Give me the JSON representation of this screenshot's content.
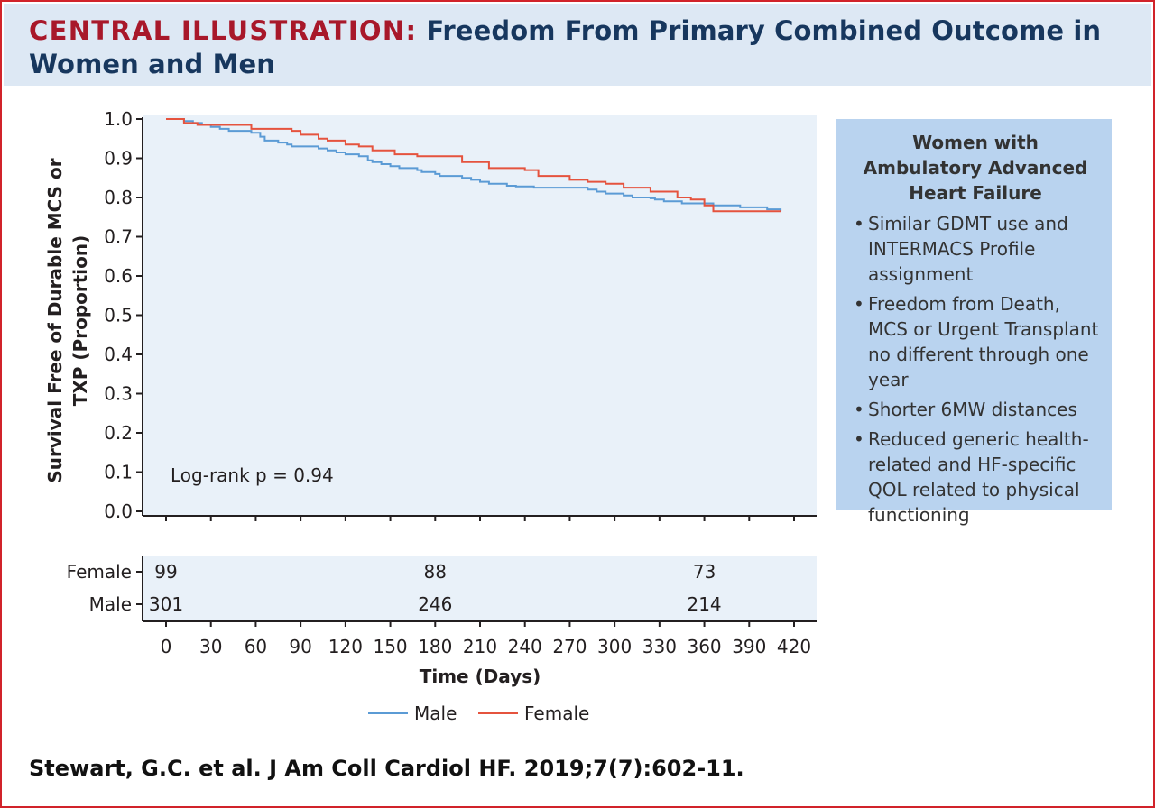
{
  "header": {
    "title_lead": "CENTRAL ILLUSTRATION:",
    "title_rest": "Freedom From Primary Combined Outcome in Women and Men"
  },
  "colors": {
    "male_line": "#5b9bd5",
    "female_line": "#e5533e",
    "plot_background": "#e9f1f9",
    "title_lead": "#a8182a",
    "title_rest": "#17375e",
    "side_box": "#b9d3ef",
    "frame": "#d1232a"
  },
  "chart_data": {
    "type": "line",
    "title": "",
    "xlabel": "Time (Days)",
    "ylabel": "Survival Free of Durable MCS or TXP (Proportion)",
    "xlim": [
      0,
      420
    ],
    "ylim": [
      0,
      1
    ],
    "x_ticks": [
      0,
      30,
      60,
      90,
      120,
      150,
      180,
      210,
      240,
      270,
      300,
      330,
      360,
      390,
      420
    ],
    "y_ticks": [
      "0.0",
      "0.1",
      "0.2",
      "0.3",
      "0.4",
      "0.5",
      "0.6",
      "0.7",
      "0.8",
      "0.9",
      "1.0"
    ],
    "grid": false,
    "legend_position": "bottom-center",
    "annotation": "Log-rank p = 0.94",
    "series": [
      {
        "name": "Male",
        "x": [
          0,
          12,
          18,
          24,
          30,
          36,
          42,
          57,
          63,
          66,
          75,
          81,
          84,
          102,
          108,
          114,
          120,
          129,
          135,
          138,
          144,
          150,
          156,
          168,
          171,
          180,
          183,
          198,
          204,
          210,
          216,
          228,
          234,
          246,
          282,
          288,
          294,
          306,
          312,
          324,
          327,
          333,
          345,
          360,
          366,
          384,
          402,
          411
        ],
        "y": [
          1.0,
          0.995,
          0.99,
          0.985,
          0.98,
          0.975,
          0.97,
          0.965,
          0.955,
          0.945,
          0.94,
          0.935,
          0.93,
          0.925,
          0.92,
          0.915,
          0.91,
          0.905,
          0.895,
          0.89,
          0.885,
          0.88,
          0.875,
          0.87,
          0.865,
          0.86,
          0.855,
          0.85,
          0.845,
          0.84,
          0.835,
          0.83,
          0.828,
          0.825,
          0.82,
          0.815,
          0.81,
          0.805,
          0.8,
          0.798,
          0.795,
          0.79,
          0.785,
          0.785,
          0.78,
          0.775,
          0.77,
          0.765
        ]
      },
      {
        "name": "Female",
        "x": [
          0,
          12,
          21,
          57,
          84,
          90,
          102,
          108,
          120,
          129,
          138,
          153,
          168,
          198,
          216,
          240,
          249,
          270,
          282,
          294,
          306,
          324,
          342,
          351,
          360,
          366,
          411
        ],
        "y": [
          1.0,
          0.99,
          0.985,
          0.975,
          0.97,
          0.96,
          0.95,
          0.945,
          0.935,
          0.93,
          0.92,
          0.91,
          0.905,
          0.89,
          0.875,
          0.87,
          0.855,
          0.845,
          0.84,
          0.835,
          0.825,
          0.815,
          0.8,
          0.795,
          0.78,
          0.765,
          0.765
        ]
      }
    ],
    "at_risk": {
      "times": [
        0,
        180,
        360
      ],
      "rows": [
        {
          "label": "Female",
          "values": [
            "99",
            "88",
            "73"
          ]
        },
        {
          "label": "Male",
          "values": [
            "301",
            "246",
            "214"
          ]
        }
      ]
    }
  },
  "side_panel": {
    "title": "Women with Ambulatory Advanced Heart Failure",
    "bullets": [
      "Similar GDMT use and INTERMACS Profile assignment",
      "Freedom from Death, MCS or Urgent Transplant no different through one year",
      "Shorter 6MW distances",
      "Reduced generic health-related and HF-specific QOL related to physical functioning"
    ]
  },
  "citation": "Stewart, G.C. et al. J Am Coll Cardiol HF. 2019;7(7):602-11."
}
